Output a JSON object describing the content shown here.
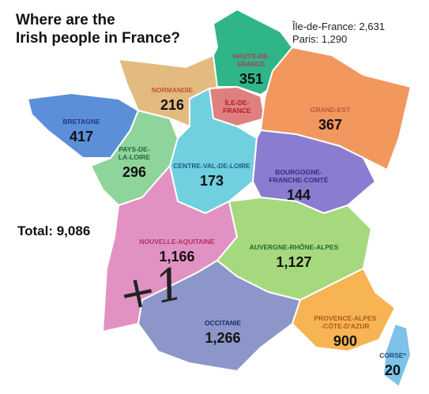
{
  "title": [
    "Where are the",
    "Irish people in France?"
  ],
  "notes": [
    "Île-de-France: 2,631",
    "Paris: 1,290"
  ],
  "total": "Total: 9,086",
  "annotation": "+1",
  "regions": [
    {
      "name": [
        "HAUTS-DE-",
        "FRANCE"
      ],
      "value": "351"
    },
    {
      "name": [
        "NORMANDIE"
      ],
      "value": "216"
    },
    {
      "name": [
        "ÎLE-DE-",
        "FRANCE"
      ]
    },
    {
      "name": [
        "GRAND-EST"
      ],
      "value": "367"
    },
    {
      "name": [
        "BRETAGNE"
      ],
      "value": "417"
    },
    {
      "name": [
        "PAYS-DE-",
        "LA-LOIRE"
      ],
      "value": "296"
    },
    {
      "name": [
        "CENTRE-VAL-DE-LOIRE"
      ],
      "value": "173"
    },
    {
      "name": [
        "BOURGOGNE-",
        "FRANCHE-COMTÉ"
      ],
      "value": "144"
    },
    {
      "name": [
        "NOUVELLE-AQUITAINE"
      ],
      "value": "1,166"
    },
    {
      "name": [
        "AUVERGNE-RHÔNE-ALPES"
      ],
      "value": "1,127"
    },
    {
      "name": [
        "OCCITANIE"
      ],
      "value": "1,266"
    },
    {
      "name": [
        "PROVENCE-ALPES",
        "-CÔTE-D'AZUR"
      ],
      "value": "900"
    },
    {
      "name": [
        "CORSE*"
      ],
      "value": "20"
    }
  ]
}
